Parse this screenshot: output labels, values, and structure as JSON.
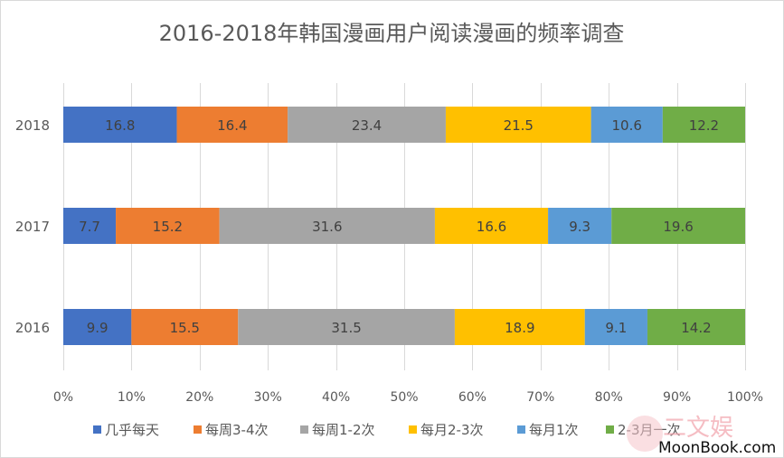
{
  "chart_data": {
    "type": "bar",
    "orientation": "horizontal",
    "stacked": "percent",
    "title": "2016-2018年韩国漫画用户阅读漫画的频率调查",
    "categories": [
      "2018",
      "2017",
      "2016"
    ],
    "series": [
      {
        "name": "几乎每天",
        "color": "#4472C4",
        "values": [
          16.8,
          7.7,
          9.9
        ]
      },
      {
        "name": "每周3-4次",
        "color": "#ED7D31",
        "values": [
          16.4,
          15.2,
          15.5
        ]
      },
      {
        "name": "每周1-2次",
        "color": "#A5A5A5",
        "values": [
          23.4,
          31.6,
          31.5
        ]
      },
      {
        "name": "每月2-3次",
        "color": "#FFC000",
        "values": [
          21.5,
          16.6,
          18.9
        ]
      },
      {
        "name": "每月1次",
        "color": "#5B9BD5",
        "values": [
          10.6,
          9.3,
          9.1
        ]
      },
      {
        "name": "2-3月一次",
        "color": "#70AD47",
        "values": [
          12.2,
          19.6,
          14.2
        ]
      }
    ],
    "x_ticks": [
      "0%",
      "10%",
      "20%",
      "30%",
      "40%",
      "50%",
      "60%",
      "70%",
      "80%",
      "90%",
      "100%"
    ],
    "xlim": [
      0,
      100
    ],
    "grid": true,
    "legend_position": "bottom"
  },
  "watermark": {
    "text": "二文娱",
    "site": "MoonBook.com"
  }
}
